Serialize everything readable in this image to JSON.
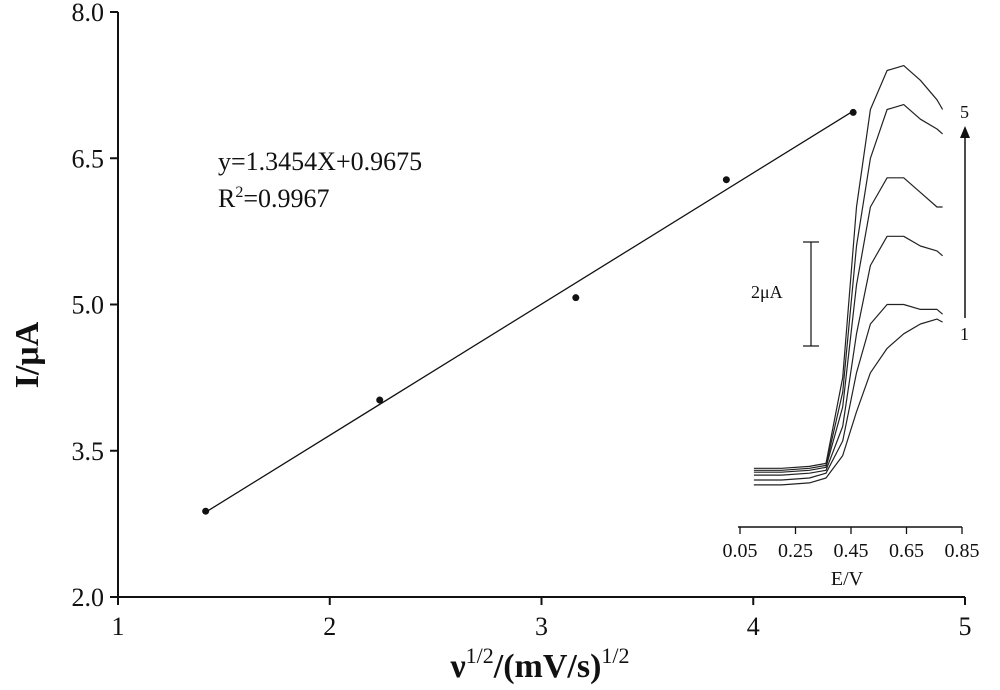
{
  "chart_data": [
    {
      "type": "scatter",
      "xlabel_base": "ν",
      "xlabel_exp1": "1/2",
      "xlabel_mid": "/(mV/s)",
      "xlabel_exp2": "1/2",
      "ylabel": "I/μA",
      "xlim": [
        1,
        5
      ],
      "ylim": [
        2.0,
        8.0
      ],
      "x_ticks": [
        "1",
        "2",
        "3",
        "4",
        "5"
      ],
      "y_ticks": [
        "2.0",
        "3.5",
        "5.0",
        "6.5",
        "8.0"
      ],
      "series": [
        {
          "points": [
            {
              "x": 1.414,
              "y": 2.88
            },
            {
              "x": 2.236,
              "y": 4.02
            },
            {
              "x": 3.162,
              "y": 5.07
            },
            {
              "x": 3.873,
              "y": 6.28
            },
            {
              "x": 4.472,
              "y": 6.97
            }
          ]
        }
      ],
      "fit": {
        "slope": 1.3454,
        "intercept": 0.9675,
        "x_range": [
          1.414,
          4.472
        ]
      },
      "annotation": {
        "equation": "y=1.3454X+0.9675",
        "r2_prefix": "R",
        "r2_exp": "2",
        "r2_value": "=0.9967"
      }
    },
    {
      "type": "line",
      "xlabel": "E/V",
      "xlim": [
        0.05,
        0.85
      ],
      "x_ticks": [
        "0.05",
        "0.25",
        "0.45",
        "0.65",
        "0.85"
      ],
      "scale_bar_label": "2μA",
      "curve_labels": {
        "first": "1",
        "last": "5"
      },
      "series": [
        {
          "x": [
            0.1,
            0.2,
            0.3,
            0.36,
            0.42,
            0.47,
            0.52,
            0.58,
            0.64,
            0.7,
            0.76,
            0.78
          ],
          "y": [
            3.15,
            3.15,
            3.17,
            3.22,
            3.45,
            3.9,
            4.3,
            4.55,
            4.7,
            4.8,
            4.85,
            4.82
          ]
        },
        {
          "x": [
            0.1,
            0.2,
            0.3,
            0.36,
            0.42,
            0.47,
            0.52,
            0.58,
            0.64,
            0.7,
            0.76,
            0.78
          ],
          "y": [
            3.2,
            3.2,
            3.22,
            3.27,
            3.6,
            4.3,
            4.8,
            5.0,
            5.0,
            4.95,
            4.95,
            4.9
          ]
        },
        {
          "x": [
            0.1,
            0.2,
            0.3,
            0.36,
            0.42,
            0.47,
            0.52,
            0.58,
            0.64,
            0.7,
            0.76,
            0.78
          ],
          "y": [
            3.25,
            3.25,
            3.27,
            3.3,
            3.75,
            4.7,
            5.4,
            5.7,
            5.7,
            5.6,
            5.55,
            5.5
          ]
        },
        {
          "x": [
            0.1,
            0.2,
            0.3,
            0.36,
            0.42,
            0.47,
            0.52,
            0.58,
            0.64,
            0.7,
            0.76,
            0.78
          ],
          "y": [
            3.28,
            3.28,
            3.3,
            3.33,
            3.95,
            5.2,
            6.0,
            6.3,
            6.3,
            6.15,
            6.0,
            6.0
          ]
        },
        {
          "x": [
            0.1,
            0.2,
            0.3,
            0.36,
            0.42,
            0.47,
            0.52,
            0.58,
            0.64,
            0.7,
            0.76,
            0.78
          ],
          "y": [
            3.3,
            3.3,
            3.32,
            3.35,
            4.1,
            5.6,
            6.5,
            7.0,
            7.05,
            6.9,
            6.8,
            6.75
          ]
        },
        {
          "x": [
            0.1,
            0.2,
            0.3,
            0.36,
            0.42,
            0.47,
            0.52,
            0.58,
            0.64,
            0.7,
            0.76,
            0.78
          ],
          "y": [
            3.32,
            3.32,
            3.34,
            3.37,
            4.25,
            6.0,
            7.0,
            7.4,
            7.45,
            7.3,
            7.1,
            7.0
          ]
        }
      ]
    }
  ]
}
